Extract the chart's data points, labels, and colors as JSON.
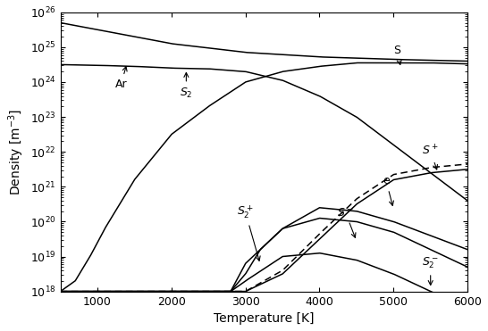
{
  "xlabel": "Temperature [K]",
  "ylabel": "Density [m$^{-3}$]",
  "xlim": [
    500,
    6000
  ],
  "ylim": [
    1e+18,
    1e+26
  ]
}
